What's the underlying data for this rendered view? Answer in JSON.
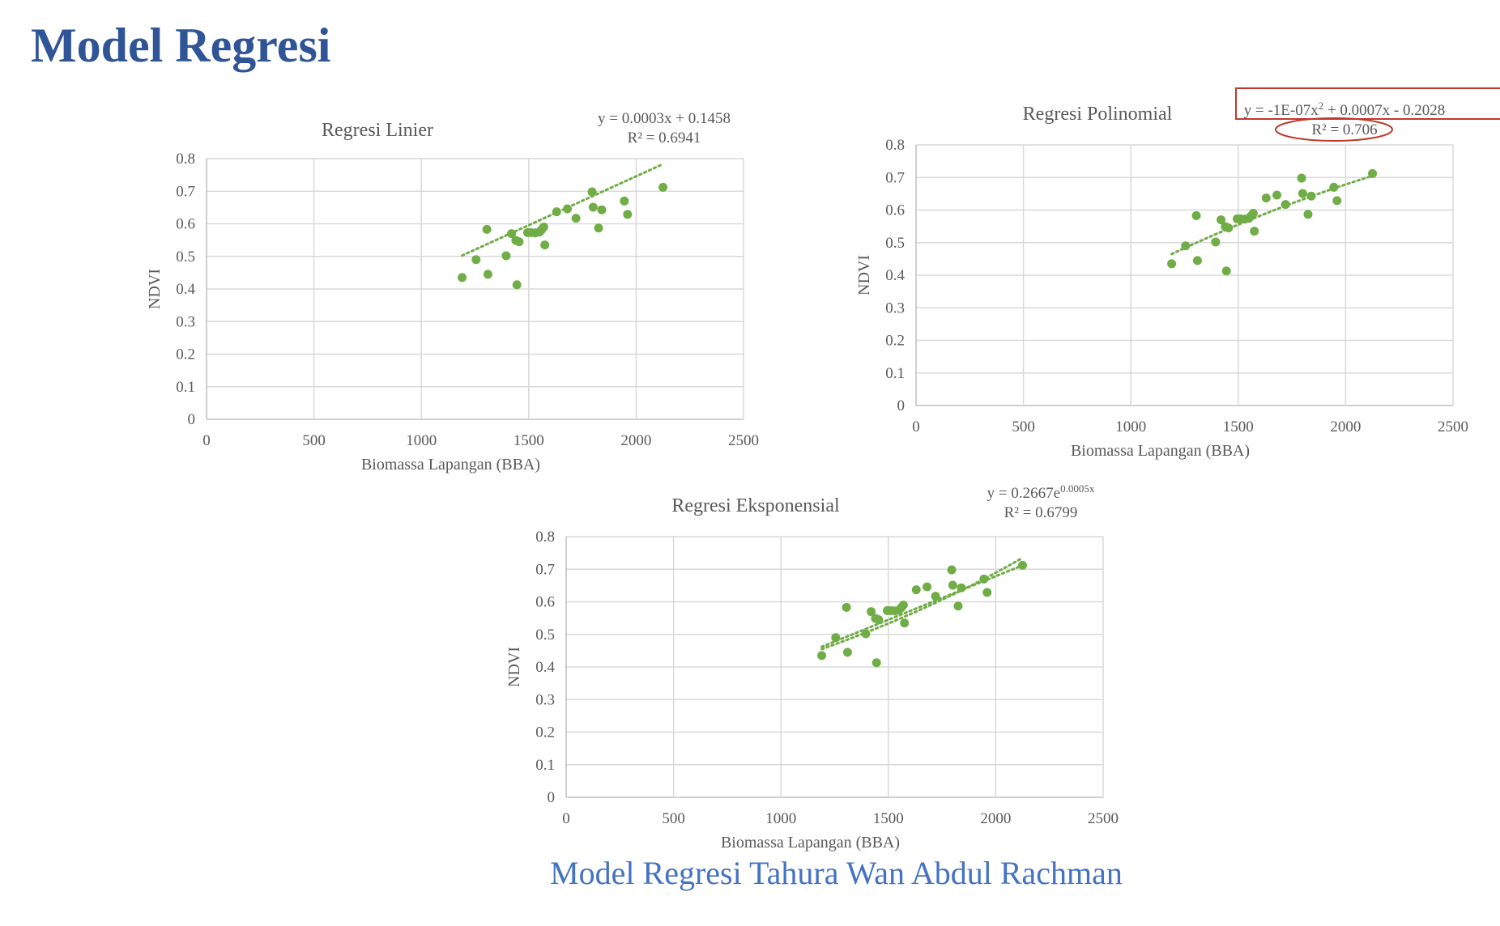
{
  "page": {
    "title": "Model Regresi",
    "caption": "Model Regresi Tahura Wan Abdul Rachman"
  },
  "colors": {
    "title": "#2f5597",
    "caption": "#4472c4",
    "series": "#70ad47",
    "highlight": "#c0392b"
  },
  "chart_data": [
    {
      "type": "scatter",
      "title": "Regresi Linier",
      "xlabel": "Biomassa Lapangan (BBA)",
      "ylabel": "NDVI",
      "xlim": [
        0,
        2500
      ],
      "ylim": [
        0,
        0.8
      ],
      "xticks": [
        0,
        500,
        1000,
        1500,
        2000,
        2500
      ],
      "yticks": [
        0,
        0.1,
        0.2,
        0.3,
        0.4,
        0.5,
        0.6,
        0.7,
        0.8
      ],
      "grid": true,
      "trendline": {
        "kind": "linear",
        "a": 0.0003,
        "b": 0.1458,
        "x_range": [
          1190,
          2125
        ]
      },
      "equation": {
        "line1": "y = 0.0003x + 0.1458",
        "line2": "R² = 0.6941"
      },
      "points": [
        [
          1190,
          0.435
        ],
        [
          1255,
          0.49
        ],
        [
          1305,
          0.583
        ],
        [
          1310,
          0.445
        ],
        [
          1395,
          0.502
        ],
        [
          1420,
          0.57
        ],
        [
          1440,
          0.549
        ],
        [
          1445,
          0.413
        ],
        [
          1455,
          0.545
        ],
        [
          1495,
          0.573
        ],
        [
          1510,
          0.573
        ],
        [
          1530,
          0.572
        ],
        [
          1550,
          0.575
        ],
        [
          1560,
          0.582
        ],
        [
          1570,
          0.59
        ],
        [
          1575,
          0.535
        ],
        [
          1630,
          0.637
        ],
        [
          1680,
          0.646
        ],
        [
          1720,
          0.617
        ],
        [
          1795,
          0.698
        ],
        [
          1800,
          0.651
        ],
        [
          1825,
          0.587
        ],
        [
          1840,
          0.643
        ],
        [
          1945,
          0.67
        ],
        [
          1960,
          0.629
        ],
        [
          2125,
          0.712
        ]
      ]
    },
    {
      "type": "scatter",
      "title": "Regresi Polinomial",
      "xlabel": "Biomassa Lapangan (BBA)",
      "ylabel": "NDVI",
      "xlim": [
        0,
        2500
      ],
      "ylim": [
        0,
        0.8
      ],
      "xticks": [
        0,
        500,
        1000,
        1500,
        2000,
        2500
      ],
      "yticks": [
        0,
        0.1,
        0.2,
        0.3,
        0.4,
        0.5,
        0.6,
        0.7,
        0.8
      ],
      "grid": true,
      "trendline": {
        "kind": "polynomial",
        "x_range": [
          1190,
          2125
        ],
        "y_range": [
          0.465,
          0.705
        ]
      },
      "equation": {
        "line1": "y = -1E-07x",
        "sup1": "2",
        "line1b": " + 0.0007x - 0.2028",
        "line2": "R² = 0.706"
      },
      "points": [
        [
          1190,
          0.435
        ],
        [
          1255,
          0.49
        ],
        [
          1305,
          0.583
        ],
        [
          1310,
          0.445
        ],
        [
          1395,
          0.502
        ],
        [
          1420,
          0.57
        ],
        [
          1440,
          0.549
        ],
        [
          1445,
          0.413
        ],
        [
          1455,
          0.545
        ],
        [
          1495,
          0.573
        ],
        [
          1510,
          0.573
        ],
        [
          1530,
          0.572
        ],
        [
          1550,
          0.575
        ],
        [
          1560,
          0.582
        ],
        [
          1570,
          0.59
        ],
        [
          1575,
          0.535
        ],
        [
          1630,
          0.637
        ],
        [
          1680,
          0.646
        ],
        [
          1720,
          0.617
        ],
        [
          1795,
          0.698
        ],
        [
          1800,
          0.651
        ],
        [
          1825,
          0.587
        ],
        [
          1840,
          0.643
        ],
        [
          1945,
          0.67
        ],
        [
          1960,
          0.629
        ],
        [
          2125,
          0.712
        ]
      ]
    },
    {
      "type": "scatter",
      "title": "Regresi Eksponensial",
      "xlabel": "Biomassa Lapangan (BBA)",
      "ylabel": "NDVI",
      "xlim": [
        0,
        2500
      ],
      "ylim": [
        0,
        0.8
      ],
      "xticks": [
        0,
        500,
        1000,
        1500,
        2000,
        2500
      ],
      "yticks": [
        0,
        0.1,
        0.2,
        0.3,
        0.4,
        0.5,
        0.6,
        0.7,
        0.8
      ],
      "grid": true,
      "trendline": {
        "kind": "exponential",
        "a": 0.2667,
        "b": 0.0005,
        "x_range": [
          1190,
          2125
        ],
        "y_range": [
          0.455,
          0.735
        ]
      },
      "equation": {
        "line1": "y = 0.2667e",
        "sup1": "0.0005x",
        "line2": "R² = 0.6799"
      },
      "points": [
        [
          1190,
          0.435
        ],
        [
          1255,
          0.49
        ],
        [
          1305,
          0.583
        ],
        [
          1310,
          0.445
        ],
        [
          1395,
          0.502
        ],
        [
          1420,
          0.57
        ],
        [
          1440,
          0.549
        ],
        [
          1445,
          0.413
        ],
        [
          1455,
          0.545
        ],
        [
          1495,
          0.573
        ],
        [
          1510,
          0.573
        ],
        [
          1530,
          0.572
        ],
        [
          1550,
          0.575
        ],
        [
          1560,
          0.582
        ],
        [
          1570,
          0.59
        ],
        [
          1575,
          0.535
        ],
        [
          1630,
          0.637
        ],
        [
          1680,
          0.646
        ],
        [
          1720,
          0.617
        ],
        [
          1795,
          0.698
        ],
        [
          1800,
          0.651
        ],
        [
          1825,
          0.587
        ],
        [
          1840,
          0.643
        ],
        [
          1945,
          0.67
        ],
        [
          1960,
          0.629
        ],
        [
          2125,
          0.712
        ]
      ]
    }
  ]
}
